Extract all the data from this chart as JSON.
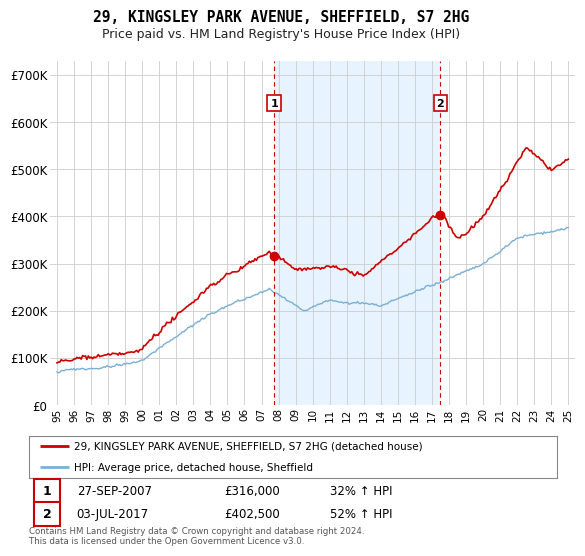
{
  "title": "29, KINGSLEY PARK AVENUE, SHEFFIELD, S7 2HG",
  "subtitle": "Price paid vs. HM Land Registry's House Price Index (HPI)",
  "ylim": [
    0,
    730000
  ],
  "yticks": [
    0,
    100000,
    200000,
    300000,
    400000,
    500000,
    600000,
    700000
  ],
  "ytick_labels": [
    "£0",
    "£100K",
    "£200K",
    "£300K",
    "£400K",
    "£500K",
    "£600K",
    "£700K"
  ],
  "house_color": "#cc0000",
  "hpi_color": "#7bafd4",
  "shade_color": "#ddeeff",
  "marker1_date": 2007.74,
  "marker1_value": 316000,
  "marker2_date": 2017.5,
  "marker2_value": 402500,
  "legend_house": "29, KINGSLEY PARK AVENUE, SHEFFIELD, S7 2HG (detached house)",
  "legend_hpi": "HPI: Average price, detached house, Sheffield",
  "footnote": "Contains HM Land Registry data © Crown copyright and database right 2024.\nThis data is licensed under the Open Government Licence v3.0.",
  "background_color": "#ffffff",
  "grid_color": "#cccccc"
}
